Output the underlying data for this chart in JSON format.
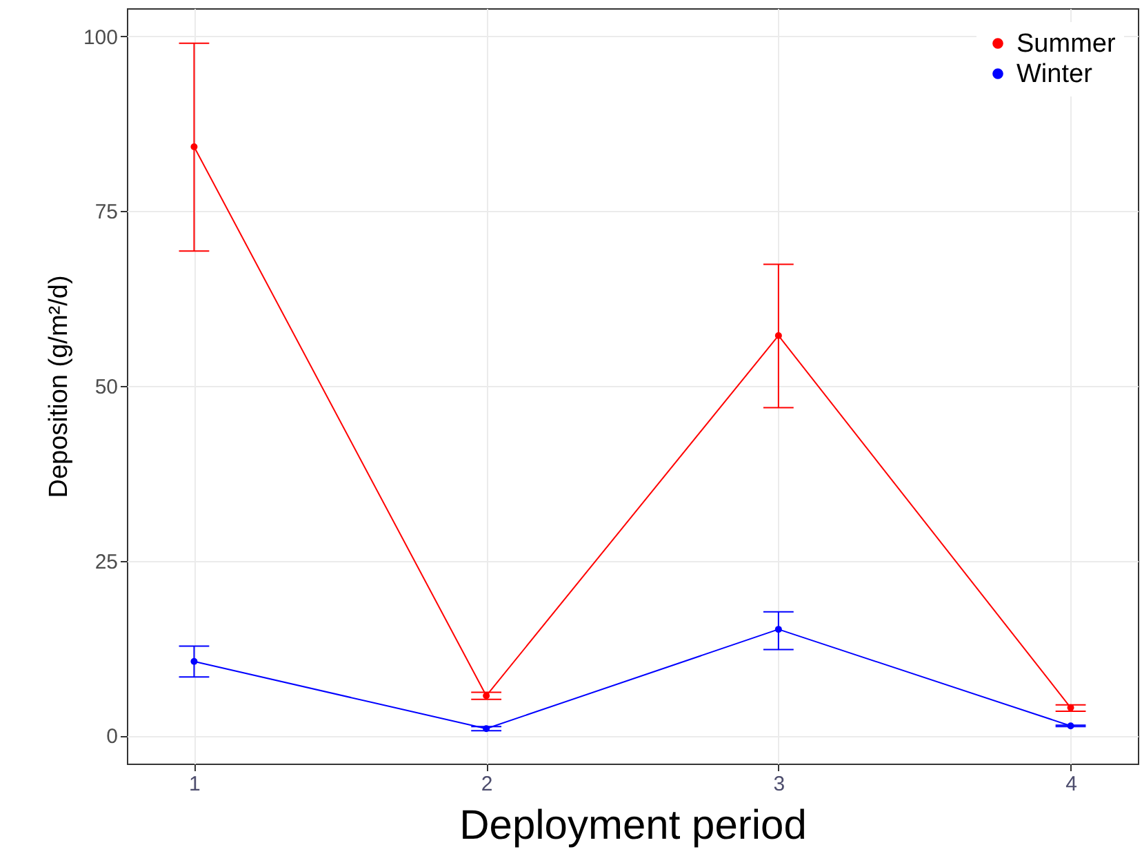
{
  "chart_data": {
    "type": "line",
    "xlabel": "Deployment period",
    "ylabel": "Deposition (g/m²/d)",
    "x": [
      1,
      2,
      3,
      4
    ],
    "xlim": [
      0.77,
      4.23
    ],
    "xticks": [
      1,
      2,
      3,
      4
    ],
    "ylim": [
      -4,
      104
    ],
    "yticks": [
      0,
      25,
      50,
      75,
      100
    ],
    "grid": true,
    "legend": "top right",
    "marker": "circle",
    "line_style": "solid",
    "series": [
      {
        "name": "Summer",
        "color": "#ff0000",
        "values": [
          84.2,
          5.7,
          57.2,
          4.0
        ],
        "errors": [
          [
            69.3,
            99.0
          ],
          [
            5.2,
            6.2
          ],
          [
            46.9,
            67.4
          ],
          [
            3.5,
            4.4
          ]
        ]
      },
      {
        "name": "Winter",
        "color": "#0000ff",
        "values": [
          10.6,
          1.0,
          15.2,
          1.4
        ],
        "errors": [
          [
            8.4,
            12.8
          ],
          [
            0.7,
            1.3
          ],
          [
            12.3,
            17.7
          ],
          [
            1.3,
            1.5
          ]
        ]
      }
    ]
  }
}
